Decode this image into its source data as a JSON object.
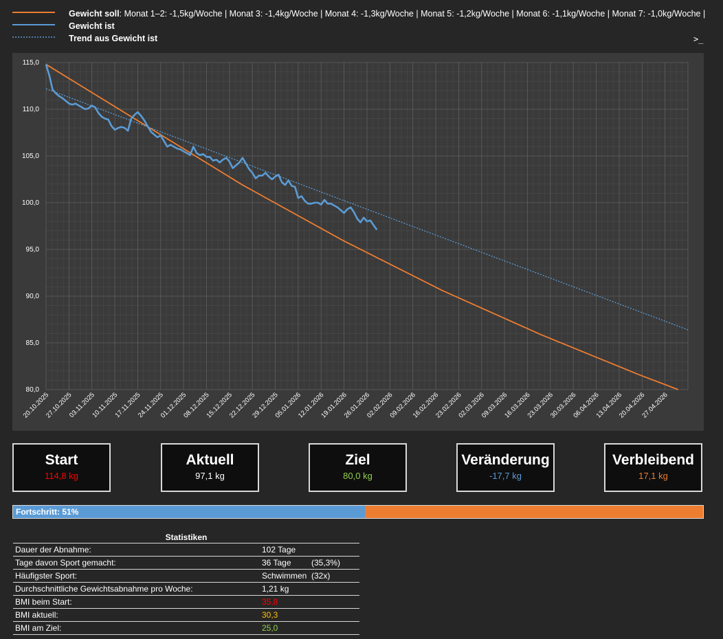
{
  "legend": [
    {
      "name": "Gewicht soll",
      "detail": ": Monat 1–2: -1,5kg/Woche | Monat 3: -1,4kg/Woche | Monat 4: -1,3kg/Woche | Monat 5: -1,2kg/Woche | Monat 6: -1,1kg/Woche | Monat 7: -1,0kg/Woche |",
      "color": "#ed7d31",
      "style": "solid"
    },
    {
      "name": "Gewicht ist",
      "detail": "",
      "color": "#5b9bd5",
      "style": "solid"
    },
    {
      "name": "Trend aus Gewicht ist",
      "detail": "",
      "color": "#5b9bd5",
      "style": "dotted"
    }
  ],
  "console_icon": ">_",
  "chart_data": {
    "type": "line",
    "ylim": [
      80,
      115
    ],
    "yticks": [
      "80,0",
      "85,0",
      "90,0",
      "95,0",
      "100,0",
      "105,0",
      "110,0",
      "115,0"
    ],
    "xticks": [
      "20.10.2025",
      "27.10.2025",
      "03.11.2025",
      "10.11.2025",
      "17.11.2025",
      "24.11.2025",
      "01.12.2025",
      "08.12.2025",
      "15.12.2025",
      "22.12.2025",
      "29.12.2025",
      "05.01.2026",
      "12.01.2026",
      "19.01.2026",
      "26.01.2026",
      "02.02.2026",
      "09.02.2026",
      "16.02.2026",
      "23.02.2026",
      "02.03.2026",
      "09.03.2026",
      "16.03.2026",
      "23.03.2026",
      "30.03.2026",
      "06.04.2026",
      "13.04.2026",
      "20.04.2026",
      "27.04.2026"
    ],
    "x_start": "2025-10-20",
    "x_end": "2026-05-04",
    "grid": true,
    "series": [
      {
        "name": "Gewicht soll",
        "color": "#ed7d31",
        "style": "solid",
        "x": [
          "2025-10-20",
          "2025-12-19",
          "2026-01-19",
          "2026-02-18",
          "2026-03-20",
          "2026-04-19",
          "2026-05-01"
        ],
        "y": [
          114.8,
          101.9,
          95.9,
          90.6,
          85.9,
          81.6,
          80.0
        ]
      },
      {
        "name": "Gewicht ist",
        "color": "#5b9bd5",
        "style": "solid",
        "x": [
          "2025-10-20",
          "2025-10-21",
          "2025-10-22",
          "2025-10-23",
          "2025-10-24",
          "2025-10-25",
          "2025-10-26",
          "2025-10-27",
          "2025-10-28",
          "2025-10-29",
          "2025-10-30",
          "2025-10-31",
          "2025-11-01",
          "2025-11-02",
          "2025-11-03",
          "2025-11-04",
          "2025-11-05",
          "2025-11-06",
          "2025-11-07",
          "2025-11-08",
          "2025-11-09",
          "2025-11-10",
          "2025-11-11",
          "2025-11-12",
          "2025-11-13",
          "2025-11-14",
          "2025-11-15",
          "2025-11-16",
          "2025-11-17",
          "2025-11-18",
          "2025-11-19",
          "2025-11-20",
          "2025-11-21",
          "2025-11-22",
          "2025-11-23",
          "2025-11-24",
          "2025-11-25",
          "2025-11-26",
          "2025-11-27",
          "2025-11-28",
          "2025-11-29",
          "2025-11-30",
          "2025-12-01",
          "2025-12-02",
          "2025-12-03",
          "2025-12-04",
          "2025-12-05",
          "2025-12-06",
          "2025-12-07",
          "2025-12-08",
          "2025-12-09",
          "2025-12-10",
          "2025-12-11",
          "2025-12-12",
          "2025-12-13",
          "2025-12-14",
          "2025-12-15",
          "2025-12-16",
          "2025-12-17",
          "2025-12-18",
          "2025-12-19",
          "2025-12-20",
          "2025-12-21",
          "2025-12-22",
          "2025-12-23",
          "2025-12-24",
          "2025-12-25",
          "2025-12-26",
          "2025-12-27",
          "2025-12-28",
          "2025-12-29",
          "2025-12-30",
          "2025-12-31",
          "2026-01-01",
          "2026-01-02",
          "2026-01-03",
          "2026-01-04",
          "2026-01-05",
          "2026-01-06",
          "2026-01-07",
          "2026-01-08",
          "2026-01-09",
          "2026-01-10",
          "2026-01-11",
          "2026-01-12",
          "2026-01-13",
          "2026-01-14",
          "2026-01-15",
          "2026-01-16",
          "2026-01-17",
          "2026-01-18",
          "2026-01-19",
          "2026-01-20",
          "2026-01-21",
          "2026-01-22",
          "2026-01-23",
          "2026-01-24",
          "2026-01-25",
          "2026-01-26",
          "2026-01-27",
          "2026-01-28",
          "2026-01-29"
        ],
        "y": [
          114.8,
          113.6,
          112.1,
          111.7,
          111.4,
          111.2,
          110.9,
          110.6,
          110.5,
          110.6,
          110.4,
          110.2,
          110.0,
          110.1,
          110.4,
          110.2,
          109.6,
          109.2,
          109.0,
          108.9,
          108.2,
          107.8,
          108.0,
          108.1,
          108.0,
          107.7,
          109.0,
          109.4,
          109.7,
          109.3,
          108.8,
          108.2,
          107.6,
          107.3,
          107.0,
          107.2,
          106.6,
          106.0,
          106.2,
          106.0,
          105.8,
          105.7,
          105.5,
          105.3,
          105.1,
          106.0,
          105.3,
          105.1,
          105.2,
          104.9,
          104.9,
          104.5,
          104.6,
          104.3,
          104.6,
          104.8,
          104.4,
          103.7,
          104.0,
          104.3,
          104.8,
          104.2,
          103.6,
          103.2,
          102.6,
          102.9,
          102.9,
          103.2,
          102.8,
          102.5,
          102.8,
          103.0,
          102.2,
          101.9,
          102.4,
          101.8,
          101.7,
          100.5,
          100.7,
          100.2,
          99.9,
          99.9,
          100.0,
          100.0,
          99.8,
          100.3,
          99.9,
          99.9,
          99.7,
          99.5,
          99.2,
          98.9,
          99.3,
          99.5,
          99.0,
          98.3,
          97.9,
          98.4,
          98.0,
          98.1,
          97.6,
          97.1
        ]
      },
      {
        "name": "Trend aus Gewicht ist",
        "color": "#5b9bd5",
        "style": "dotted",
        "x": [
          "2025-10-20",
          "2026-05-04"
        ],
        "y": [
          112.2,
          86.4
        ]
      }
    ]
  },
  "cards": [
    {
      "label": "Start",
      "value": "114,8 kg",
      "color": "#ff0000"
    },
    {
      "label": "Aktuell",
      "value": "97,1 kg",
      "color": "#ffffff"
    },
    {
      "label": "Ziel",
      "value": "80,0 kg",
      "color": "#92d050"
    },
    {
      "label": "Veränderung",
      "value": "-17,7 kg",
      "color": "#5b9bd5"
    },
    {
      "label": "Verbleibend",
      "value": "17,1 kg",
      "color": "#ed7d31"
    }
  ],
  "progress": {
    "label": "Fortschritt: 51%",
    "percent": 51,
    "fill_color": "#5b9bd5",
    "rest_color": "#ed7d31"
  },
  "stats": {
    "title": "Statistiken",
    "rows": [
      {
        "label": "Dauer der Abnahme:",
        "value": "102 Tage",
        "extra": "",
        "color": "#ffffff"
      },
      {
        "label": "Tage davon Sport gemacht:",
        "value": "36 Tage",
        "extra": "(35,3%)",
        "color": "#ffffff"
      },
      {
        "label": "Häufigster Sport:",
        "value": "Schwimmen",
        "extra": "(32x)",
        "color": "#ffffff"
      },
      {
        "label": "Durchschnittliche Gewichtsabnahme pro Woche:",
        "value": "1,21 kg",
        "extra": "",
        "color": "#ffffff"
      },
      {
        "label": "BMI beim Start:",
        "value": "35,8",
        "extra": "",
        "color": "#ff0000"
      },
      {
        "label": "BMI aktuell:",
        "value": "30,3",
        "extra": "",
        "color": "#ffc000"
      },
      {
        "label": "BMI am Ziel:",
        "value": "25,0",
        "extra": "",
        "color": "#92d050"
      }
    ]
  }
}
